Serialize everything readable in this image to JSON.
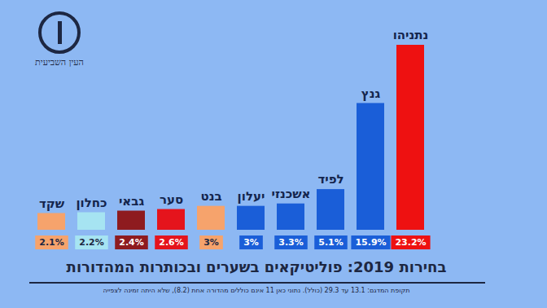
{
  "chart_data": {
    "type": "bar",
    "title": "בחירות 2019: פוליטיקאים בשערים ובכותרות המהדורות",
    "caption": "תקופת המדגם: 13.1 עד 29.3 (כולל). נתוני כאן 11 אינם כוללים מהדורה אחת (8.2), שלא היתה זמינה לצפייה",
    "source": "העין השביעית",
    "categories": [
      "שקד",
      "כחלון",
      "גבאי",
      "סער",
      "בנט",
      "יעלון",
      "אשכנזי",
      "לפיד",
      "גנץ",
      "נתניהו"
    ],
    "values": [
      2.1,
      2.2,
      2.4,
      2.6,
      3,
      3,
      3.3,
      5.1,
      15.9,
      23.2
    ],
    "value_labels": [
      "2.1%",
      "2.2%",
      "2.4%",
      "2.6%",
      "3%",
      "3%",
      "3.3%",
      "5.1%",
      "15.9%",
      "23.2%"
    ],
    "colors": [
      "#f6a36c",
      "#a6e4f2",
      "#8e1b1f",
      "#e5141c",
      "#f6a36c",
      "#1a5ed8",
      "#1a5ed8",
      "#1a5ed8",
      "#1a5ed8",
      "#ee1111"
    ],
    "data_labels": true,
    "tick_labels": false
  }
}
